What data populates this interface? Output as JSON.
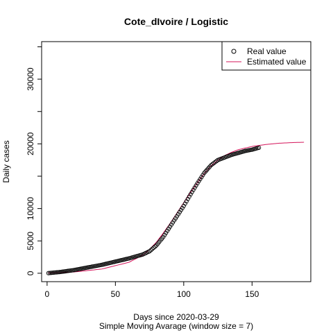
{
  "chart_data": {
    "type": "scatter",
    "title": "Cote_dIvoire / Logistic",
    "xlabel": "Days since 2020-03-29",
    "xlabel2": "Simple Moving Avarage (window size = 7)",
    "ylabel": "Daily cases",
    "xlim": [
      -4,
      193
    ],
    "ylim": [
      -1300,
      35800
    ],
    "x_ticks": [
      0,
      50,
      100,
      150
    ],
    "y_ticks": [
      0,
      5000,
      10000,
      20000,
      30000
    ],
    "y_minor_ticks": [
      15000,
      25000,
      35000
    ],
    "legend": {
      "position": "top-right",
      "entries": [
        "Real value",
        "Estimated value"
      ]
    },
    "series": [
      {
        "name": "Real value",
        "marker": "open-circle",
        "color": "#000000",
        "x_start": 1,
        "x_end": 155,
        "anchors": [
          [
            1,
            20
          ],
          [
            10,
            200
          ],
          [
            20,
            500
          ],
          [
            30,
            900
          ],
          [
            40,
            1300
          ],
          [
            50,
            1800
          ],
          [
            60,
            2300
          ],
          [
            70,
            2900
          ],
          [
            75,
            3400
          ],
          [
            80,
            4300
          ],
          [
            85,
            5600
          ],
          [
            90,
            7200
          ],
          [
            95,
            8800
          ],
          [
            100,
            10400
          ],
          [
            105,
            12200
          ],
          [
            110,
            13900
          ],
          [
            115,
            15500
          ],
          [
            120,
            16700
          ],
          [
            125,
            17500
          ],
          [
            130,
            17900
          ],
          [
            135,
            18300
          ],
          [
            140,
            18600
          ],
          [
            145,
            18900
          ],
          [
            150,
            19100
          ],
          [
            155,
            19400
          ]
        ]
      },
      {
        "name": "Estimated value",
        "line": "solid",
        "color": "#d4145a",
        "anchors": [
          [
            1,
            40
          ],
          [
            20,
            200
          ],
          [
            40,
            650
          ],
          [
            60,
            1700
          ],
          [
            70,
            2800
          ],
          [
            75,
            3700
          ],
          [
            80,
            4800
          ],
          [
            85,
            6200
          ],
          [
            90,
            7700
          ],
          [
            95,
            9300
          ],
          [
            100,
            10900
          ],
          [
            105,
            12500
          ],
          [
            110,
            14000
          ],
          [
            115,
            15400
          ],
          [
            120,
            16600
          ],
          [
            125,
            17500
          ],
          [
            130,
            18200
          ],
          [
            135,
            18700
          ],
          [
            140,
            19100
          ],
          [
            150,
            19600
          ],
          [
            160,
            19900
          ],
          [
            170,
            20100
          ],
          [
            180,
            20200
          ],
          [
            188,
            20250
          ]
        ]
      }
    ]
  }
}
